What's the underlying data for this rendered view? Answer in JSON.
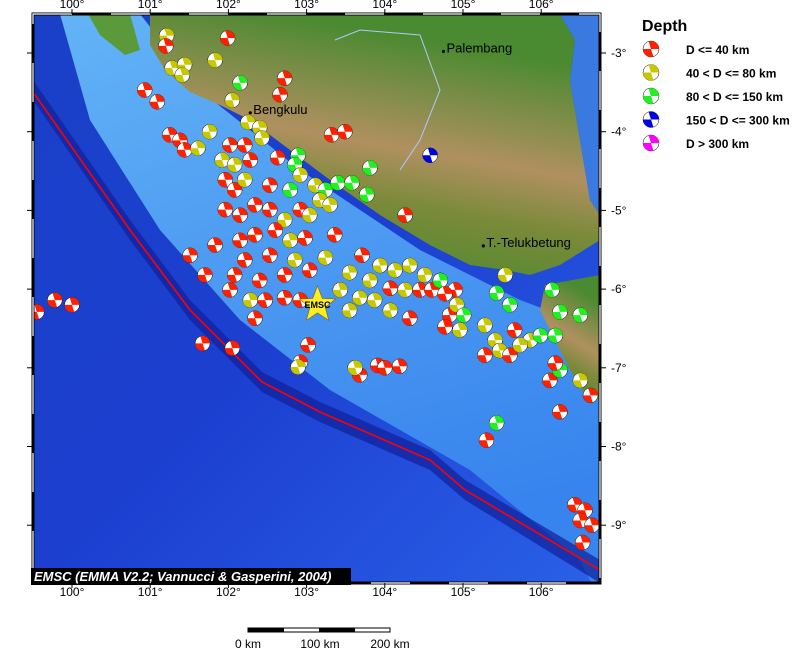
{
  "map": {
    "lon_range": [
      99.5,
      106.75
    ],
    "lat_range": [
      -9.7,
      -2.52
    ],
    "lon_ticks": [
      100,
      101,
      102,
      103,
      104,
      105,
      106
    ],
    "lat_ticks": [
      -3,
      -4,
      -5,
      -6,
      -7,
      -8,
      -9
    ],
    "lon_tick_labels": [
      "100°",
      "101°",
      "102°",
      "103°",
      "104°",
      "105°",
      "106°"
    ],
    "lat_tick_labels": [
      "-3°",
      "-4°",
      "-5°",
      "-6°",
      "-7°",
      "-8°",
      "-9°"
    ],
    "credit": "EMSC (EMMA V2.2; Vannucci & Gasperini, 2004)",
    "cities": [
      {
        "name": "Palembang",
        "lon": 104.75,
        "lat": -2.98
      },
      {
        "name": "Bengkulu",
        "lon": 102.28,
        "lat": -3.76
      },
      {
        "name": "T.-Telukbetung",
        "lon": 105.26,
        "lat": -5.45
      }
    ],
    "star": {
      "label": "EMSC",
      "lon": 103.14,
      "lat": -6.2
    },
    "trench_color": "#ff0000"
  },
  "legend": {
    "title": "Depth",
    "items": [
      {
        "label": "D <= 40 km",
        "color": "#ff2000"
      },
      {
        "label": "40 < D <= 80 km",
        "color": "#c8c800"
      },
      {
        "label": "80 < D <= 150 km",
        "color": "#20f020"
      },
      {
        "label": "150 < D <= 300 km",
        "color": "#0000e0"
      },
      {
        "label": "D > 300 km",
        "color": "#ff00ff"
      }
    ]
  },
  "scale_bar": {
    "labels": [
      "0 km",
      "100 km",
      "200 km"
    ]
  },
  "events": [
    [
      101.21,
      -2.78,
      1
    ],
    [
      101.2,
      -2.91,
      0
    ],
    [
      101.99,
      -2.81,
      0
    ],
    [
      101.28,
      -3.19,
      1
    ],
    [
      101.44,
      -3.15,
      1
    ],
    [
      101.41,
      -3.28,
      1
    ],
    [
      101.83,
      -3.09,
      1
    ],
    [
      102.72,
      -3.32,
      0
    ],
    [
      102.66,
      -3.53,
      0
    ],
    [
      100.93,
      -3.47,
      0
    ],
    [
      101.09,
      -3.62,
      0
    ],
    [
      102.15,
      -3.38,
      2
    ],
    [
      102.05,
      -3.6,
      1
    ],
    [
      102.25,
      -3.88,
      1
    ],
    [
      102.4,
      -3.95,
      1
    ],
    [
      102.43,
      -4.08,
      1
    ],
    [
      101.25,
      -4.04,
      0
    ],
    [
      101.38,
      -4.11,
      0
    ],
    [
      101.44,
      -4.23,
      0
    ],
    [
      101.61,
      -4.21,
      1
    ],
    [
      101.76,
      -4.0,
      1
    ],
    [
      102.02,
      -4.17,
      0
    ],
    [
      102.21,
      -4.17,
      0
    ],
    [
      101.92,
      -4.36,
      1
    ],
    [
      102.08,
      -4.42,
      1
    ],
    [
      102.28,
      -4.36,
      0
    ],
    [
      102.63,
      -4.33,
      0
    ],
    [
      102.89,
      -4.3,
      2
    ],
    [
      102.85,
      -4.42,
      2
    ],
    [
      102.92,
      -4.55,
      1
    ],
    [
      103.32,
      -4.04,
      0
    ],
    [
      103.49,
      -4.0,
      0
    ],
    [
      103.81,
      -4.46,
      2
    ],
    [
      101.96,
      -4.61,
      0
    ],
    [
      102.08,
      -4.74,
      0
    ],
    [
      102.21,
      -4.61,
      1
    ],
    [
      102.53,
      -4.68,
      0
    ],
    [
      102.79,
      -4.74,
      2
    ],
    [
      103.11,
      -4.68,
      1
    ],
    [
      103.24,
      -4.74,
      2
    ],
    [
      103.4,
      -4.65,
      2
    ],
    [
      103.58,
      -4.65,
      2
    ],
    [
      103.77,
      -4.8,
      2
    ],
    [
      103.17,
      -4.87,
      1
    ],
    [
      103.3,
      -4.93,
      1
    ],
    [
      101.96,
      -4.99,
      0
    ],
    [
      102.15,
      -5.06,
      0
    ],
    [
      102.34,
      -4.93,
      0
    ],
    [
      102.53,
      -4.99,
      0
    ],
    [
      102.72,
      -5.12,
      1
    ],
    [
      102.92,
      -4.99,
      0
    ],
    [
      103.04,
      -5.06,
      1
    ],
    [
      102.15,
      -5.38,
      0
    ],
    [
      102.34,
      -5.31,
      0
    ],
    [
      102.6,
      -5.25,
      0
    ],
    [
      102.79,
      -5.38,
      1
    ],
    [
      102.98,
      -5.35,
      0
    ],
    [
      103.36,
      -5.31,
      0
    ],
    [
      104.26,
      -5.06,
      0
    ],
    [
      101.51,
      -5.57,
      0
    ],
    [
      101.83,
      -5.44,
      0
    ],
    [
      102.21,
      -5.63,
      0
    ],
    [
      102.53,
      -5.57,
      0
    ],
    [
      102.85,
      -5.63,
      1
    ],
    [
      103.24,
      -5.6,
      1
    ],
    [
      103.71,
      -5.57,
      0
    ],
    [
      103.94,
      -5.7,
      1
    ],
    [
      104.13,
      -5.76,
      1
    ],
    [
      104.32,
      -5.7,
      1
    ],
    [
      104.51,
      -5.82,
      1
    ],
    [
      104.71,
      -5.89,
      1
    ],
    [
      101.7,
      -5.82,
      0
    ],
    [
      102.08,
      -5.82,
      0
    ],
    [
      102.4,
      -5.89,
      0
    ],
    [
      102.72,
      -5.82,
      0
    ],
    [
      103.04,
      -5.76,
      0
    ],
    [
      103.55,
      -5.79,
      1
    ],
    [
      103.81,
      -5.89,
      1
    ],
    [
      104.07,
      -5.99,
      0
    ],
    [
      104.26,
      -6.01,
      1
    ],
    [
      104.45,
      -6.01,
      0
    ],
    [
      104.6,
      -6.01,
      0
    ],
    [
      104.71,
      -5.89,
      2
    ],
    [
      104.9,
      -6.01,
      0
    ],
    [
      105.54,
      -5.82,
      1
    ],
    [
      102.02,
      -6.01,
      0
    ],
    [
      102.28,
      -6.14,
      1
    ],
    [
      102.47,
      -6.14,
      0
    ],
    [
      102.72,
      -6.11,
      0
    ],
    [
      102.92,
      -6.14,
      0
    ],
    [
      103.43,
      -6.01,
      1
    ],
    [
      103.68,
      -6.11,
      1
    ],
    [
      103.87,
      -6.14,
      1
    ],
    [
      104.07,
      -6.27,
      1
    ],
    [
      104.32,
      -6.37,
      0
    ],
    [
      104.77,
      -6.06,
      0
    ],
    [
      104.83,
      -6.33,
      0
    ],
    [
      104.92,
      -6.2,
      1
    ],
    [
      105.43,
      -6.05,
      2
    ],
    [
      105.6,
      -6.2,
      2
    ],
    [
      106.14,
      -6.01,
      2
    ],
    [
      106.24,
      -6.29,
      2
    ],
    [
      106.5,
      -6.33,
      2
    ],
    [
      105.01,
      -6.33,
      2
    ],
    [
      99.55,
      -6.29,
      0
    ],
    [
      99.78,
      -6.14,
      0
    ],
    [
      100.0,
      -6.2,
      0
    ],
    [
      102.34,
      -6.37,
      0
    ],
    [
      103.55,
      -6.27,
      1
    ],
    [
      104.77,
      -6.48,
      0
    ],
    [
      104.96,
      -6.52,
      1
    ],
    [
      105.28,
      -6.46,
      1
    ],
    [
      105.41,
      -6.65,
      1
    ],
    [
      105.66,
      -6.52,
      0
    ],
    [
      105.86,
      -6.65,
      1
    ],
    [
      105.99,
      -6.59,
      2
    ],
    [
      106.18,
      -6.59,
      2
    ],
    [
      105.28,
      -6.84,
      0
    ],
    [
      105.47,
      -6.78,
      1
    ],
    [
      105.6,
      -6.84,
      0
    ],
    [
      105.73,
      -6.71,
      1
    ],
    [
      101.67,
      -6.69,
      0
    ],
    [
      102.05,
      -6.75,
      0
    ],
    [
      103.02,
      -6.71,
      0
    ],
    [
      102.92,
      -6.93,
      0
    ],
    [
      102.89,
      -6.99,
      1
    ],
    [
      103.68,
      -7.09,
      0
    ],
    [
      103.62,
      -7.0,
      1
    ],
    [
      103.91,
      -6.97,
      0
    ],
    [
      104.19,
      -6.98,
      0
    ],
    [
      104.0,
      -7.0,
      0
    ],
    [
      106.11,
      -7.16,
      0
    ],
    [
      106.24,
      -7.03,
      2
    ],
    [
      106.18,
      -6.94,
      0
    ],
    [
      106.5,
      -7.16,
      1
    ],
    [
      106.63,
      -7.35,
      0
    ],
    [
      106.24,
      -7.56,
      0
    ],
    [
      105.43,
      -7.7,
      2
    ],
    [
      105.3,
      -7.92,
      0
    ],
    [
      106.43,
      -8.74,
      0
    ],
    [
      106.56,
      -8.81,
      0
    ],
    [
      106.5,
      -8.94,
      0
    ],
    [
      106.65,
      -9.0,
      0
    ],
    [
      106.53,
      -9.22,
      0
    ],
    [
      104.58,
      -4.3,
      3
    ]
  ]
}
